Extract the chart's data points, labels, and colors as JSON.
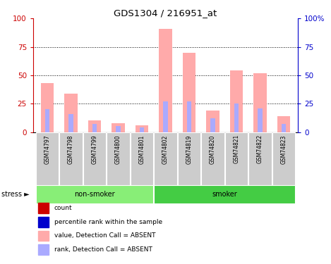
{
  "title": "GDS1304 / 216951_at",
  "samples": [
    "GSM74797",
    "GSM74798",
    "GSM74799",
    "GSM74800",
    "GSM74801",
    "GSM74802",
    "GSM74819",
    "GSM74820",
    "GSM74821",
    "GSM74822",
    "GSM74823"
  ],
  "pink_values": [
    43,
    34,
    10,
    8,
    6,
    91,
    70,
    19,
    54,
    52,
    14
  ],
  "blue_values": [
    20,
    16,
    7,
    5,
    4,
    27,
    27,
    12,
    25,
    21,
    7
  ],
  "non_smoker_count": 5,
  "smoker_count": 6,
  "non_smoker_label": "non-smoker",
  "smoker_label": "smoker",
  "stress_label": "stress",
  "ylim": [
    0,
    100
  ],
  "yticks": [
    0,
    25,
    50,
    75,
    100
  ],
  "left_axis_color": "#cc0000",
  "right_axis_color": "#0000cc",
  "pink_color": "#ffaaaa",
  "blue_color": "#aaaaff",
  "red_color": "#cc0000",
  "dark_blue_color": "#0000cc",
  "non_smoker_bg": "#88ee77",
  "smoker_bg": "#44cc44",
  "tick_label_bg": "#cccccc",
  "plot_bg": "#ffffff",
  "right_ytick_labels": [
    "0",
    "25",
    "50",
    "75",
    "100%"
  ],
  "legend_labels": [
    "count",
    "percentile rank within the sample",
    "value, Detection Call = ABSENT",
    "rank, Detection Call = ABSENT"
  ],
  "legend_colors": [
    "#cc0000",
    "#0000cc",
    "#ffaaaa",
    "#aaaaff"
  ]
}
